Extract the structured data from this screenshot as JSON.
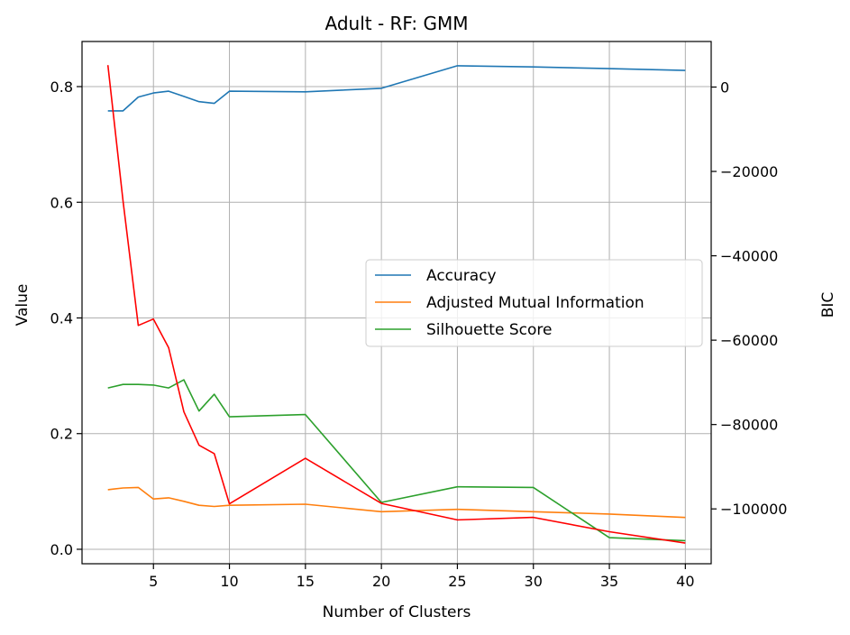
{
  "chart_data": {
    "type": "line",
    "title": "Adult - RF: GMM",
    "xlabel": "Number of Clusters",
    "ylabel": "Value",
    "y2label": "BIC",
    "xlim": [
      0.3,
      41.7
    ],
    "ylim": [
      -0.025,
      0.878
    ],
    "y2lim": [
      -113000,
      10800
    ],
    "x_ticks": [
      5,
      10,
      15,
      20,
      25,
      30,
      35,
      40
    ],
    "y_ticks": [
      0.0,
      0.2,
      0.4,
      0.6,
      0.8
    ],
    "y_tick_labels": [
      "0.0",
      "0.2",
      "0.4",
      "0.6",
      "0.8"
    ],
    "y2_ticks": [
      0,
      -20000,
      -40000,
      -60000,
      -80000,
      -100000
    ],
    "y2_tick_labels": [
      "0",
      "−20000",
      "−40000",
      "−60000",
      "−80000",
      "−100000"
    ],
    "grid": true,
    "legend_position": "center-right",
    "x": [
      2,
      3,
      4,
      5,
      6,
      7,
      8,
      9,
      10,
      15,
      20,
      25,
      30,
      35,
      40
    ],
    "series": [
      {
        "name": "Accuracy",
        "axis": "left",
        "color": "#1f77b4",
        "values": [
          0.758,
          0.758,
          0.782,
          0.789,
          0.792,
          0.783,
          0.774,
          0.771,
          0.792,
          0.791,
          0.797,
          0.836,
          0.834,
          0.831,
          0.828
        ]
      },
      {
        "name": "Adjusted Mutual Information",
        "axis": "left",
        "color": "#ff7f0e",
        "values": [
          0.103,
          0.106,
          0.107,
          0.087,
          0.089,
          0.083,
          0.076,
          0.074,
          0.076,
          0.078,
          0.065,
          0.069,
          0.065,
          0.061,
          0.055
        ]
      },
      {
        "name": "Silhouette Score",
        "axis": "left",
        "color": "#2ca02c",
        "values": [
          0.279,
          0.285,
          0.285,
          0.284,
          0.279,
          0.293,
          0.239,
          0.268,
          0.229,
          0.233,
          0.081,
          0.108,
          0.107,
          0.02,
          0.015
        ]
      },
      {
        "name": "",
        "axis": "right",
        "color": "#ff0000",
        "values": [
          5200,
          -27000,
          -56500,
          -55000,
          -61800,
          -77000,
          -84900,
          -86900,
          -98800,
          -88000,
          -98700,
          -102600,
          -102000,
          -105400,
          -108100
        ]
      }
    ]
  }
}
